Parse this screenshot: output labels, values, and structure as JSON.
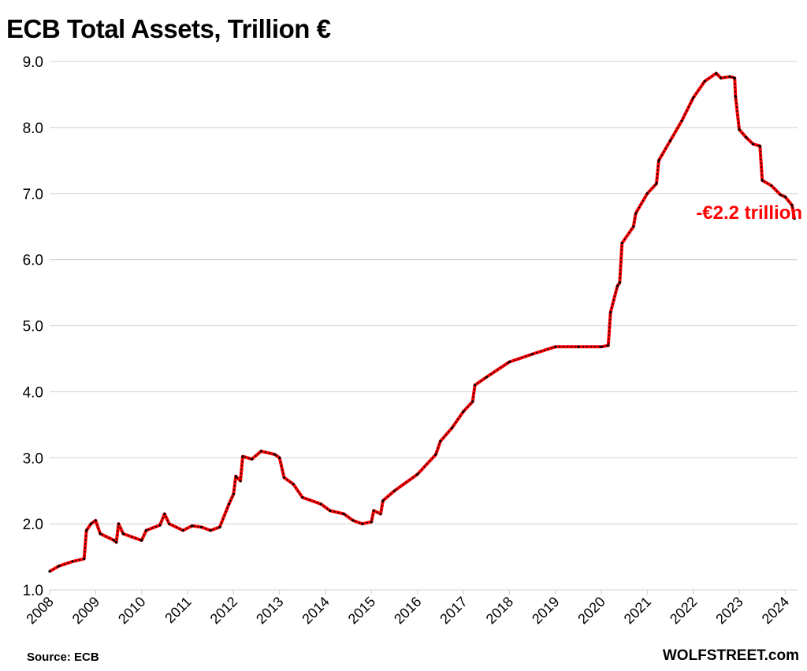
{
  "chart_data": {
    "type": "line",
    "title": "ECB Total Assets, Trillion €",
    "xlabel": "",
    "ylabel": "",
    "ylim": [
      1.0,
      9.0
    ],
    "yticks": [
      "1.0",
      "2.0",
      "3.0",
      "4.0",
      "5.0",
      "6.0",
      "7.0",
      "8.0",
      "9.0"
    ],
    "xlim": [
      2008,
      2024.2
    ],
    "xticks": [
      "2008",
      "2009",
      "2010",
      "2011",
      "2012",
      "2013",
      "2014",
      "2015",
      "2016",
      "2017",
      "2018",
      "2019",
      "2020",
      "2021",
      "2022",
      "2023",
      "2024"
    ],
    "grid": true,
    "line_color": "#ff0000",
    "marker_color": "#000000",
    "annotation": "-€2.2 trillion",
    "annotation_color": "#ff0000",
    "source": "Source: ECB",
    "brand": "WOLFSTREET.com",
    "series": [
      {
        "x": [
          2008.0,
          2008.2,
          2008.5,
          2008.75,
          2008.8,
          2008.9,
          2009.0,
          2009.1,
          2009.4,
          2009.45,
          2009.5,
          2009.6,
          2010.0,
          2010.1,
          2010.4,
          2010.5,
          2010.6,
          2010.9,
          2011.1,
          2011.3,
          2011.5,
          2011.7,
          2011.9,
          2012.0,
          2012.05,
          2012.15,
          2012.2,
          2012.4,
          2012.6,
          2012.9,
          2013.0,
          2013.1,
          2013.3,
          2013.5,
          2013.9,
          2014.1,
          2014.4,
          2014.6,
          2014.8,
          2015.0,
          2015.05,
          2015.2,
          2015.25,
          2015.5,
          2016.0,
          2016.4,
          2016.5,
          2016.75,
          2017.0,
          2017.2,
          2017.25,
          2017.5,
          2018.0,
          2018.5,
          2019.0,
          2019.5,
          2020.0,
          2020.15,
          2020.2,
          2020.35,
          2020.4,
          2020.45,
          2020.7,
          2020.75,
          2021.0,
          2021.2,
          2021.25,
          2021.5,
          2021.75,
          2022.0,
          2022.25,
          2022.5,
          2022.6,
          2022.8,
          2022.9,
          2022.92,
          2023.0,
          2023.15,
          2023.3,
          2023.45,
          2023.5,
          2023.7,
          2023.9,
          2024.0,
          2024.15,
          2024.2
        ],
        "values": [
          1.28,
          1.36,
          1.43,
          1.47,
          1.9,
          2.0,
          2.05,
          1.85,
          1.75,
          1.72,
          2.0,
          1.85,
          1.75,
          1.9,
          1.98,
          2.15,
          2.0,
          1.9,
          1.97,
          1.95,
          1.9,
          1.95,
          2.3,
          2.45,
          2.72,
          2.65,
          3.02,
          2.98,
          3.1,
          3.05,
          3.0,
          2.7,
          2.6,
          2.4,
          2.3,
          2.2,
          2.15,
          2.05,
          2.0,
          2.03,
          2.2,
          2.15,
          2.35,
          2.5,
          2.75,
          3.05,
          3.25,
          3.45,
          3.7,
          3.85,
          4.1,
          4.22,
          4.45,
          4.57,
          4.68,
          4.68,
          4.68,
          4.7,
          5.2,
          5.6,
          5.65,
          6.25,
          6.5,
          6.7,
          7.0,
          7.15,
          7.5,
          7.8,
          8.1,
          8.45,
          8.7,
          8.82,
          8.75,
          8.77,
          8.75,
          8.47,
          7.97,
          7.85,
          7.75,
          7.72,
          7.2,
          7.12,
          6.98,
          6.95,
          6.82,
          6.62
        ]
      }
    ]
  }
}
